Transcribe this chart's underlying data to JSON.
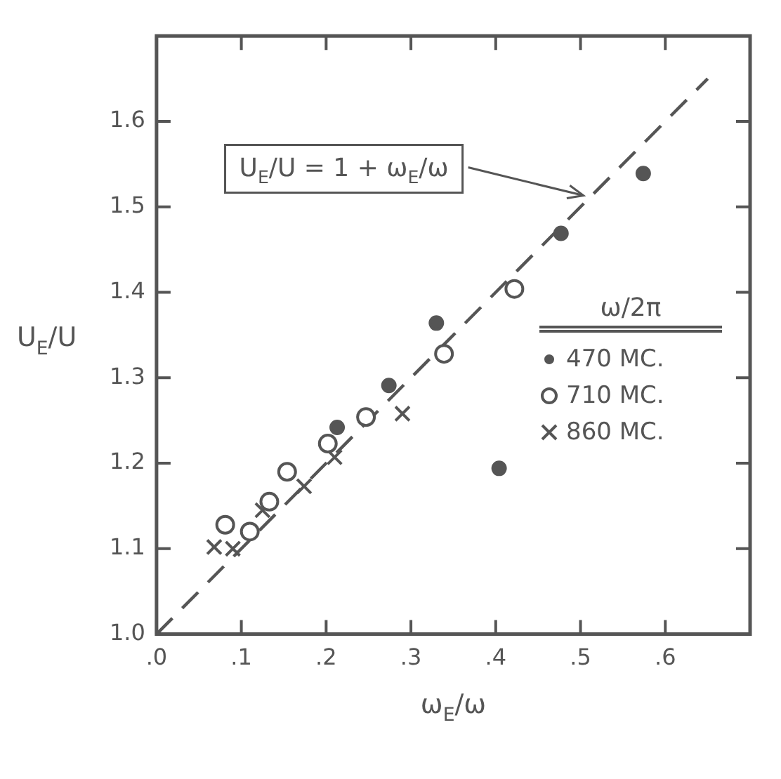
{
  "chart_data": {
    "type": "scatter",
    "xlabel": "ω$_{E}$/ω",
    "ylabel": "U$_{E}$/U",
    "legend_title": "ω/2π",
    "xlim": [
      0,
      0.7
    ],
    "ylim": [
      1.0,
      1.7
    ],
    "xticks": [
      {
        "value": 0,
        "label": ".0"
      },
      {
        "value": 0.1,
        "label": ".1"
      },
      {
        "value": 0.2,
        "label": ".2"
      },
      {
        "value": 0.3,
        "label": ".3"
      },
      {
        "value": 0.4,
        "label": ".4"
      },
      {
        "value": 0.5,
        "label": ".5"
      },
      {
        "value": 0.6,
        "label": ".6"
      }
    ],
    "yticks": [
      {
        "value": 1,
        "label": "1.0"
      },
      1.1,
      1.2,
      1.3,
      1.4,
      1.5,
      1.6
    ],
    "grid": false,
    "legend": "right",
    "annotations": [
      {
        "text": "U$_{E}$/U = 1 + ω$_{E}$/ω",
        "x": 0.51,
        "y": 1.51
      }
    ],
    "series": [
      {
        "name": "470 MC.",
        "color": "#555555",
        "marker": "circle",
        "x": [
          0.213,
          0.274,
          0.33,
          0.404,
          0.477,
          0.574
        ],
        "values": [
          1.242,
          1.291,
          1.364,
          1.194,
          1.469,
          1.539
        ]
      },
      {
        "name": "710 MC.",
        "color": "#555555",
        "marker": "circle",
        "x": [
          0.081,
          0.11,
          0.133,
          0.154,
          0.202,
          0.247,
          0.339,
          0.422
        ],
        "values": [
          1.128,
          1.12,
          1.155,
          1.19,
          1.223,
          1.254,
          1.328,
          1.404
        ]
      },
      {
        "name": "860 MC.",
        "color": "#555555",
        "marker": "cross",
        "x": [
          0.068,
          0.09,
          0.125,
          0.174,
          0.21,
          0.29
        ],
        "values": [
          1.102,
          1.1,
          1.145,
          1.173,
          1.207,
          1.258
        ]
      },
      {
        "type": "line",
        "color": "#555555",
        "line_style": "dashed",
        "marker": "none",
        "x": [
          0,
          0.65
        ],
        "values": [
          1,
          1.65
        ]
      }
    ]
  }
}
